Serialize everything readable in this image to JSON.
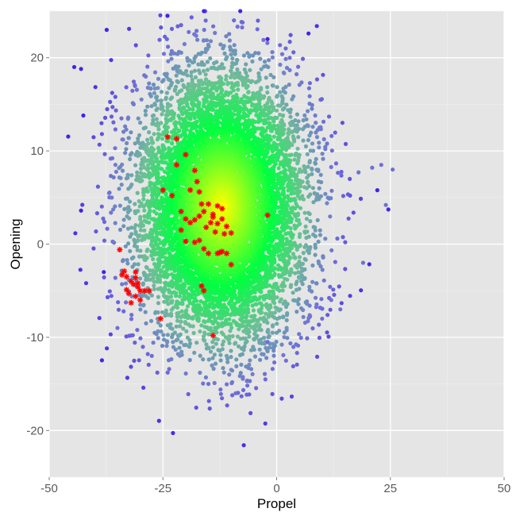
{
  "chart_data": {
    "type": "scatter",
    "title": "",
    "xlabel": "Propel",
    "ylabel": "Opening",
    "xlim": [
      -50,
      50
    ],
    "ylim": [
      -25,
      25
    ],
    "x_ticks": [
      -50,
      -25,
      0,
      25,
      50
    ],
    "x_tick_labels": [
      "-50",
      "-25",
      "0",
      "25",
      "50"
    ],
    "y_ticks": [
      -20,
      -10,
      0,
      10,
      20
    ],
    "y_tick_labels": [
      "-20",
      "-10",
      "0",
      "10",
      "20"
    ],
    "grid": true,
    "legend": "none",
    "colors": {
      "panel_background": "#e5e5e5",
      "grid_major": "#ffffff",
      "grid_minor": "#f0f0f0",
      "density_high": "#ffff00",
      "density_mid": "#00ff40",
      "density_low": "#6f6fd8",
      "density_sparse": "#4a20e8",
      "highlight": "#ff0000"
    },
    "dense_cloud": {
      "description_visible": false,
      "center": [
        -12,
        4
      ],
      "spread": [
        9,
        7
      ],
      "n_points": 9000,
      "color_mode": "local density gradient (yellow high, green medium, blue low)"
    },
    "outliers": [
      [
        -44.5,
        19
      ],
      [
        -43,
        18.8
      ],
      [
        -42.5,
        13.8
      ],
      [
        -43,
        3.6
      ],
      [
        -35,
        -9
      ],
      [
        -38,
        -3
      ],
      [
        -24,
        24.5
      ],
      [
        -16,
        25
      ],
      [
        -8,
        25
      ],
      [
        -2,
        22
      ],
      [
        7,
        22.6
      ],
      [
        25.5,
        8
      ],
      [
        24,
        4.2
      ],
      [
        23,
        8.5
      ],
      [
        21,
        8.2
      ],
      [
        18,
        7.7
      ],
      [
        19,
        -2
      ],
      [
        12,
        -6
      ],
      [
        14,
        -7
      ],
      [
        10,
        -8
      ],
      [
        -15,
        -15
      ],
      [
        -9,
        -16
      ],
      [
        -0.5,
        -12.7
      ],
      [
        -2,
        -10.5
      ]
    ],
    "series": [
      {
        "name": "",
        "marker": "asterisk",
        "color": "#ff0000",
        "x": [
          -24,
          -22,
          -20,
          -18,
          -17.5,
          -19,
          -17,
          -16.5,
          -15,
          -13,
          -12,
          -14,
          -16,
          -17,
          -18,
          -19,
          -20,
          -21,
          -14,
          -13,
          -12,
          -11,
          -10,
          -15.5,
          -14.5,
          -13.5,
          -11.5,
          -12,
          -13,
          -16,
          -15,
          -17,
          -18,
          -20,
          -21,
          -23,
          -25,
          -22,
          -11,
          -10,
          -12.5,
          -2,
          -34,
          -33.5,
          -33,
          -32,
          -31.5,
          -31,
          -30.5,
          -30,
          -32.5,
          -33,
          -31,
          -29,
          -30,
          -28,
          -34.5,
          -32,
          -31,
          -30.5,
          -25.5,
          -16,
          -16.5,
          -14
        ],
        "y": [
          11.5,
          11.3,
          9.6,
          7.9,
          6.7,
          5.8,
          5.6,
          4.3,
          4.3,
          4.1,
          3.8,
          3.2,
          3.5,
          3.0,
          2.6,
          2.3,
          2.7,
          3.5,
          2.9,
          2.2,
          2.7,
          1.9,
          1.2,
          1.8,
          2.3,
          1.3,
          1.1,
          -0.8,
          -1.0,
          -0.5,
          -1.0,
          0.4,
          0.2,
          0.3,
          1.5,
          5.2,
          5.8,
          8.5,
          -1.0,
          -2.2,
          -0.9,
          3.1,
          -3.3,
          -2.9,
          -3.5,
          -4.0,
          -4.3,
          -3.6,
          -4.6,
          -5.0,
          -5.3,
          -4.9,
          -5.6,
          -5.0,
          -6.0,
          -5.0,
          -0.6,
          -6.3,
          -3.0,
          -4.2,
          -8.0,
          -5.0,
          -4.5,
          -9.8
        ]
      }
    ]
  }
}
